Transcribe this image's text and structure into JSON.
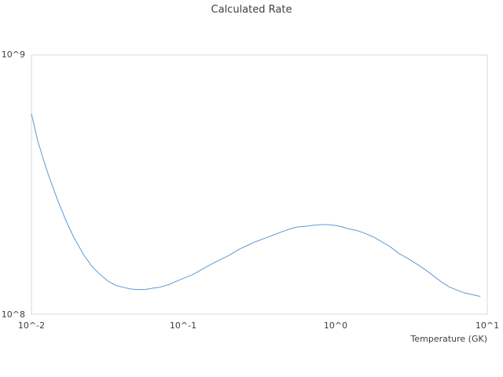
{
  "chart_data": {
    "type": "line",
    "title": "Calculated Rate",
    "xlabel": "Temperature (GK)",
    "ylabel": "",
    "x_scale": "log",
    "y_scale": "log",
    "xlim": [
      0.01,
      10
    ],
    "ylim": [
      100000000,
      1000000000
    ],
    "x_tick_labels": [
      "10^-2",
      "10^-1",
      "10^0",
      "10^1"
    ],
    "y_tick_labels": [
      "10^8",
      "10^9"
    ],
    "grid": false,
    "legend": "none",
    "series_color": "#5b9bd5",
    "series": [
      {
        "x": [
          0.01,
          0.011,
          0.012,
          0.013,
          0.015,
          0.017,
          0.019,
          0.022,
          0.025,
          0.028,
          0.032,
          0.036,
          0.04,
          0.045,
          0.05,
          0.056,
          0.063,
          0.07,
          0.08,
          0.09,
          0.1,
          0.115,
          0.13,
          0.15,
          0.17,
          0.2,
          0.23,
          0.26,
          0.3,
          0.35,
          0.4,
          0.45,
          0.5,
          0.56,
          0.63,
          0.7,
          0.8,
          0.9,
          1.0,
          1.1,
          1.2,
          1.4,
          1.6,
          1.8,
          2.0,
          2.3,
          2.6,
          3.0,
          3.5,
          4.0,
          4.5,
          5.0,
          5.6,
          6.3,
          7.0,
          8.0,
          9.0
        ],
        "y": [
          593000000,
          466000000,
          395000000,
          342000000,
          272000000,
          227000000,
          198000000,
          170000000,
          153000000,
          143000000,
          134000000,
          129000000,
          127000000,
          125000000,
          124500000,
          124500000,
          126000000,
          127000000,
          130000000,
          134000000,
          137500000,
          142000000,
          148000000,
          155000000,
          161000000,
          168500000,
          177500000,
          183500000,
          190500000,
          197000000,
          203000000,
          208500000,
          213000000,
          217000000,
          218000000,
          220000000,
          221500000,
          221500000,
          220000000,
          217500000,
          214000000,
          210000000,
          204000000,
          198000000,
          191000000,
          182000000,
          172000000,
          164000000,
          155000000,
          147000000,
          139500000,
          133000000,
          127500000,
          124000000,
          121000000,
          119000000,
          117000000
        ]
      }
    ]
  }
}
